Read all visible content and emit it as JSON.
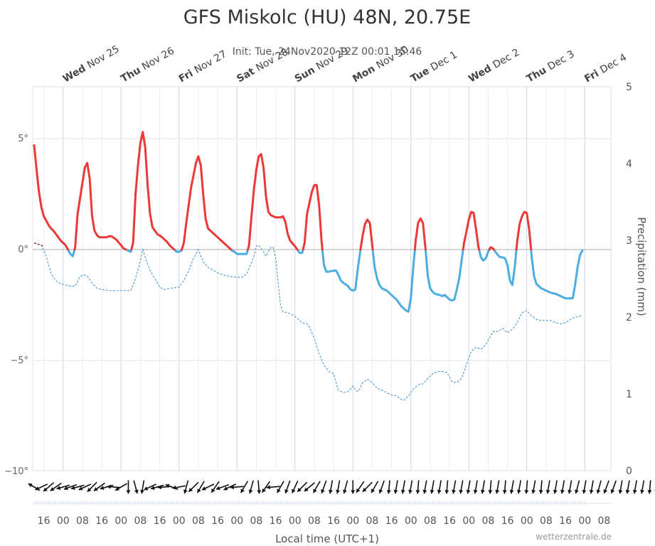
{
  "header": {
    "title": "GFS Miskolc (HU) 48N, 20.75E",
    "subtitle": "Init: Tue, 24Nov2020 12Z 00:01 15:46"
  },
  "footer": {
    "xlabel": "Local time (UTC+1)",
    "credit": "wetterzentrale.de"
  },
  "chart_data": {
    "type": "line",
    "x_unit": "hours since Tue Nov 24 12:00 (local time)",
    "day_labels": [
      {
        "wd": "Wed",
        "date": "Nov 25"
      },
      {
        "wd": "Thu",
        "date": "Nov 26"
      },
      {
        "wd": "Fri",
        "date": "Nov 27"
      },
      {
        "wd": "Sat",
        "date": "Nov 28"
      },
      {
        "wd": "Sun",
        "date": "Nov 29"
      },
      {
        "wd": "Mon",
        "date": "Nov 30"
      },
      {
        "wd": "Tue",
        "date": "Dec 1"
      },
      {
        "wd": "Wed",
        "date": "Dec 2"
      },
      {
        "wd": "Thu",
        "date": "Dec 3"
      },
      {
        "wd": "Fri",
        "date": "Dec 4"
      }
    ],
    "y_left": {
      "range": [
        -10,
        7.4
      ],
      "ticks": [
        5,
        0,
        -5,
        -10
      ],
      "tick_labels": [
        "5°",
        "0°",
        "−5°",
        "−10°"
      ]
    },
    "y_right": {
      "label": "Precipitation (mm)",
      "range": [
        0,
        5
      ],
      "ticks": [
        0,
        1,
        2,
        3,
        4,
        5
      ]
    },
    "x_tick_labels": [
      "16",
      "00",
      "08",
      "16",
      "00",
      "08",
      "16",
      "00",
      "08",
      "16",
      "00",
      "08",
      "16",
      "00",
      "08",
      "16",
      "00",
      "08",
      "16",
      "00",
      "08",
      "16",
      "00",
      "08",
      "16",
      "00",
      "08",
      "16",
      "00",
      "08"
    ],
    "temperature": {
      "color_above_zero": "#ee3838",
      "color_below_zero": "#4bade0",
      "points": [
        [
          0,
          4.7
        ],
        [
          1,
          3.6
        ],
        [
          2,
          2.6
        ],
        [
          3,
          1.9
        ],
        [
          4,
          1.5
        ],
        [
          5,
          1.3
        ],
        [
          6,
          1.1
        ],
        [
          7,
          0.95
        ],
        [
          8,
          0.85
        ],
        [
          9,
          0.7
        ],
        [
          10,
          0.55
        ],
        [
          11,
          0.4
        ],
        [
          12,
          0.3
        ],
        [
          13,
          0.2
        ],
        [
          14,
          0.0
        ],
        [
          15,
          -0.2
        ],
        [
          16,
          -0.3
        ],
        [
          17,
          0.1
        ],
        [
          18,
          1.6
        ],
        [
          20,
          3.0
        ],
        [
          21,
          3.7
        ],
        [
          22,
          3.9
        ],
        [
          23,
          3.2
        ],
        [
          24,
          1.5
        ],
        [
          25,
          0.85
        ],
        [
          26,
          0.65
        ],
        [
          27,
          0.55
        ],
        [
          28,
          0.55
        ],
        [
          30,
          0.55
        ],
        [
          31,
          0.6
        ],
        [
          32,
          0.6
        ],
        [
          34,
          0.45
        ],
        [
          36,
          0.2
        ],
        [
          37,
          0.05
        ],
        [
          38,
          0.0
        ],
        [
          39,
          -0.05
        ],
        [
          40,
          -0.1
        ],
        [
          41,
          0.3
        ],
        [
          42,
          2.5
        ],
        [
          43,
          3.8
        ],
        [
          44,
          4.8
        ],
        [
          45,
          5.3
        ],
        [
          46,
          4.6
        ],
        [
          47,
          2.9
        ],
        [
          48,
          1.6
        ],
        [
          49,
          1.0
        ],
        [
          51,
          0.7
        ],
        [
          53,
          0.55
        ],
        [
          55,
          0.35
        ],
        [
          56,
          0.2
        ],
        [
          58,
          0.0
        ],
        [
          59,
          -0.1
        ],
        [
          60,
          -0.1
        ],
        [
          61,
          -0.05
        ],
        [
          62,
          0.3
        ],
        [
          63,
          1.2
        ],
        [
          65,
          2.8
        ],
        [
          67,
          3.9
        ],
        [
          68,
          4.2
        ],
        [
          69,
          3.8
        ],
        [
          70,
          2.5
        ],
        [
          71,
          1.4
        ],
        [
          72,
          0.95
        ],
        [
          74,
          0.75
        ],
        [
          76,
          0.55
        ],
        [
          78,
          0.35
        ],
        [
          80,
          0.15
        ],
        [
          82,
          -0.05
        ],
        [
          83,
          -0.1
        ],
        [
          84,
          -0.2
        ],
        [
          86,
          -0.2
        ],
        [
          88,
          -0.2
        ],
        [
          89,
          0.2
        ],
        [
          90,
          1.5
        ],
        [
          91,
          2.7
        ],
        [
          92,
          3.6
        ],
        [
          93,
          4.2
        ],
        [
          94,
          4.3
        ],
        [
          95,
          3.7
        ],
        [
          96,
          2.4
        ],
        [
          97,
          1.7
        ],
        [
          98,
          1.55
        ],
        [
          100,
          1.45
        ],
        [
          102,
          1.45
        ],
        [
          103,
          1.5
        ],
        [
          104,
          1.25
        ],
        [
          105,
          0.7
        ],
        [
          106,
          0.4
        ],
        [
          108,
          0.15
        ],
        [
          109,
          0.0
        ],
        [
          110,
          -0.15
        ],
        [
          111,
          -0.15
        ],
        [
          112,
          0.3
        ],
        [
          113,
          1.6
        ],
        [
          114,
          2.1
        ],
        [
          115,
          2.6
        ],
        [
          116,
          2.9
        ],
        [
          117,
          2.9
        ],
        [
          118,
          2.0
        ],
        [
          119,
          0.4
        ],
        [
          120,
          -0.7
        ],
        [
          121,
          -1.0
        ],
        [
          122,
          -1.0
        ],
        [
          124,
          -0.95
        ],
        [
          125,
          -0.95
        ],
        [
          126,
          -1.15
        ],
        [
          127,
          -1.4
        ],
        [
          128,
          -1.5
        ],
        [
          130,
          -1.65
        ],
        [
          131,
          -1.8
        ],
        [
          132,
          -1.85
        ],
        [
          133,
          -1.8
        ],
        [
          134,
          -0.9
        ],
        [
          135,
          -0.1
        ],
        [
          136,
          0.6
        ],
        [
          137,
          1.15
        ],
        [
          138,
          1.35
        ],
        [
          139,
          1.2
        ],
        [
          140,
          0.2
        ],
        [
          141,
          -0.8
        ],
        [
          142,
          -1.3
        ],
        [
          143,
          -1.6
        ],
        [
          144,
          -1.75
        ],
        [
          146,
          -1.85
        ],
        [
          148,
          -2.05
        ],
        [
          149,
          -2.15
        ],
        [
          150,
          -2.25
        ],
        [
          151,
          -2.4
        ],
        [
          152,
          -2.55
        ],
        [
          154,
          -2.75
        ],
        [
          155,
          -2.8
        ],
        [
          156,
          -2.2
        ],
        [
          157,
          -0.8
        ],
        [
          158,
          0.4
        ],
        [
          159,
          1.2
        ],
        [
          160,
          1.4
        ],
        [
          161,
          1.2
        ],
        [
          162,
          0.1
        ],
        [
          163,
          -1.2
        ],
        [
          164,
          -1.75
        ],
        [
          165,
          -1.9
        ],
        [
          166,
          -2.0
        ],
        [
          168,
          -2.05
        ],
        [
          169,
          -2.1
        ],
        [
          170,
          -2.05
        ],
        [
          172,
          -2.25
        ],
        [
          173,
          -2.3
        ],
        [
          174,
          -2.25
        ],
        [
          175,
          -1.8
        ],
        [
          176,
          -1.3
        ],
        [
          177,
          -0.5
        ],
        [
          178,
          0.3
        ],
        [
          179,
          0.8
        ],
        [
          180,
          1.35
        ],
        [
          181,
          1.7
        ],
        [
          182,
          1.65
        ],
        [
          183,
          0.9
        ],
        [
          184,
          0.1
        ],
        [
          185,
          -0.35
        ],
        [
          186,
          -0.5
        ],
        [
          187,
          -0.4
        ],
        [
          188,
          -0.1
        ],
        [
          189,
          0.1
        ],
        [
          190,
          0.05
        ],
        [
          191,
          -0.1
        ],
        [
          192,
          -0.25
        ],
        [
          193,
          -0.35
        ],
        [
          194,
          -0.35
        ],
        [
          195,
          -0.4
        ],
        [
          196,
          -0.7
        ],
        [
          197,
          -1.4
        ],
        [
          198,
          -1.6
        ],
        [
          199,
          -0.8
        ],
        [
          200,
          0.35
        ],
        [
          201,
          1.15
        ],
        [
          202,
          1.5
        ],
        [
          203,
          1.7
        ],
        [
          204,
          1.65
        ],
        [
          205,
          0.9
        ],
        [
          206,
          -0.3
        ],
        [
          207,
          -1.2
        ],
        [
          208,
          -1.55
        ],
        [
          209,
          -1.65
        ],
        [
          210,
          -1.75
        ],
        [
          212,
          -1.85
        ],
        [
          214,
          -1.95
        ],
        [
          216,
          -2.0
        ],
        [
          218,
          -2.1
        ],
        [
          220,
          -2.2
        ],
        [
          222,
          -2.2
        ],
        [
          223,
          -2.2
        ],
        [
          224,
          -1.6
        ],
        [
          225,
          -0.8
        ],
        [
          226,
          -0.25
        ],
        [
          227,
          -0.05
        ]
      ]
    },
    "dewpoint": {
      "color": "#5b9fd8",
      "style": "dashed",
      "points": [
        [
          0,
          0.3
        ],
        [
          3,
          0.2
        ],
        [
          5,
          -0.3
        ],
        [
          7,
          -1.1
        ],
        [
          9,
          -1.4
        ],
        [
          11,
          -1.55
        ],
        [
          13,
          -1.6
        ],
        [
          15,
          -1.65
        ],
        [
          17,
          -1.65
        ],
        [
          18,
          -1.45
        ],
        [
          19,
          -1.2
        ],
        [
          21,
          -1.15
        ],
        [
          22,
          -1.2
        ],
        [
          24,
          -1.5
        ],
        [
          26,
          -1.75
        ],
        [
          28,
          -1.8
        ],
        [
          31,
          -1.85
        ],
        [
          34,
          -1.85
        ],
        [
          38,
          -1.85
        ],
        [
          40,
          -1.85
        ],
        [
          42,
          -1.3
        ],
        [
          44,
          -0.5
        ],
        [
          45,
          0.0
        ],
        [
          46,
          -0.35
        ],
        [
          48,
          -0.95
        ],
        [
          50,
          -1.3
        ],
        [
          52,
          -1.7
        ],
        [
          54,
          -1.8
        ],
        [
          56,
          -1.75
        ],
        [
          60,
          -1.7
        ],
        [
          62,
          -1.4
        ],
        [
          64,
          -0.95
        ],
        [
          66,
          -0.4
        ],
        [
          68,
          0.0
        ],
        [
          70,
          -0.55
        ],
        [
          72,
          -0.8
        ],
        [
          76,
          -1.05
        ],
        [
          80,
          -1.2
        ],
        [
          84,
          -1.25
        ],
        [
          86,
          -1.25
        ],
        [
          88,
          -1.1
        ],
        [
          90,
          -0.6
        ],
        [
          91,
          -0.3
        ],
        [
          92,
          0.15
        ],
        [
          93,
          0.2
        ],
        [
          95,
          -0.1
        ],
        [
          96,
          -0.3
        ],
        [
          98,
          0.1
        ],
        [
          99,
          0.1
        ],
        [
          100,
          -0.4
        ],
        [
          101,
          -1.5
        ],
        [
          102,
          -2.5
        ],
        [
          103,
          -2.8
        ],
        [
          105,
          -2.85
        ],
        [
          107,
          -2.95
        ],
        [
          109,
          -3.1
        ],
        [
          111,
          -3.3
        ],
        [
          113,
          -3.35
        ],
        [
          114,
          -3.5
        ],
        [
          116,
          -4.0
        ],
        [
          118,
          -4.7
        ],
        [
          120,
          -5.2
        ],
        [
          122,
          -5.5
        ],
        [
          124,
          -5.6
        ],
        [
          125,
          -6.0
        ],
        [
          126,
          -6.35
        ],
        [
          128,
          -6.45
        ],
        [
          130,
          -6.4
        ],
        [
          131,
          -6.3
        ],
        [
          132,
          -6.15
        ],
        [
          133,
          -6.3
        ],
        [
          134,
          -6.4
        ],
        [
          135,
          -6.25
        ],
        [
          136,
          -6.0
        ],
        [
          138,
          -5.85
        ],
        [
          140,
          -6.0
        ],
        [
          142,
          -6.25
        ],
        [
          144,
          -6.35
        ],
        [
          146,
          -6.45
        ],
        [
          148,
          -6.55
        ],
        [
          150,
          -6.6
        ],
        [
          152,
          -6.75
        ],
        [
          153,
          -6.8
        ],
        [
          155,
          -6.6
        ],
        [
          157,
          -6.3
        ],
        [
          159,
          -6.1
        ],
        [
          161,
          -6.05
        ],
        [
          163,
          -5.8
        ],
        [
          165,
          -5.6
        ],
        [
          167,
          -5.5
        ],
        [
          169,
          -5.5
        ],
        [
          171,
          -5.55
        ],
        [
          172,
          -5.75
        ],
        [
          173,
          -5.95
        ],
        [
          175,
          -6.0
        ],
        [
          177,
          -5.8
        ],
        [
          179,
          -5.2
        ],
        [
          181,
          -4.6
        ],
        [
          183,
          -4.4
        ],
        [
          185,
          -4.5
        ],
        [
          187,
          -4.3
        ],
        [
          189,
          -3.9
        ],
        [
          190,
          -3.7
        ],
        [
          192,
          -3.7
        ],
        [
          194,
          -3.55
        ],
        [
          196,
          -3.75
        ],
        [
          198,
          -3.6
        ],
        [
          200,
          -3.3
        ],
        [
          202,
          -2.85
        ],
        [
          204,
          -2.75
        ],
        [
          206,
          -3.0
        ],
        [
          208,
          -3.15
        ],
        [
          210,
          -3.2
        ],
        [
          212,
          -3.2
        ],
        [
          214,
          -3.2
        ],
        [
          216,
          -3.3
        ],
        [
          218,
          -3.35
        ],
        [
          220,
          -3.3
        ],
        [
          222,
          -3.15
        ],
        [
          224,
          -3.05
        ],
        [
          226,
          -3.0
        ],
        [
          227,
          -3.0
        ]
      ]
    },
    "wind": {
      "color": "#111111",
      "interval_hours": 3,
      "directions_deg": [
        300,
        245,
        230,
        235,
        255,
        250,
        255,
        245,
        225,
        235,
        255,
        275,
        240,
        180,
        165,
        190,
        245,
        255,
        265,
        290,
        260,
        195,
        225,
        210,
        245,
        215,
        250,
        245,
        265,
        210,
        195,
        175,
        215,
        265,
        210,
        200,
        205,
        225,
        230,
        210,
        200,
        190,
        190,
        195,
        180,
        215,
        225,
        210,
        200,
        185,
        190,
        190,
        190,
        185,
        190,
        190,
        190,
        185,
        190,
        190,
        190,
        190,
        190,
        185,
        190,
        185,
        190,
        190,
        185,
        190,
        185,
        190,
        190,
        190,
        190,
        195,
        190,
        190,
        195,
        200,
        200,
        190,
        190,
        190,
        190,
        185,
        190,
        195,
        200,
        190,
        195,
        195,
        200,
        215,
        220,
        225,
        210,
        200,
        160,
        170,
        180,
        205,
        170,
        210,
        180,
        160,
        120,
        90,
        120,
        130,
        110,
        115,
        120
      ]
    }
  }
}
